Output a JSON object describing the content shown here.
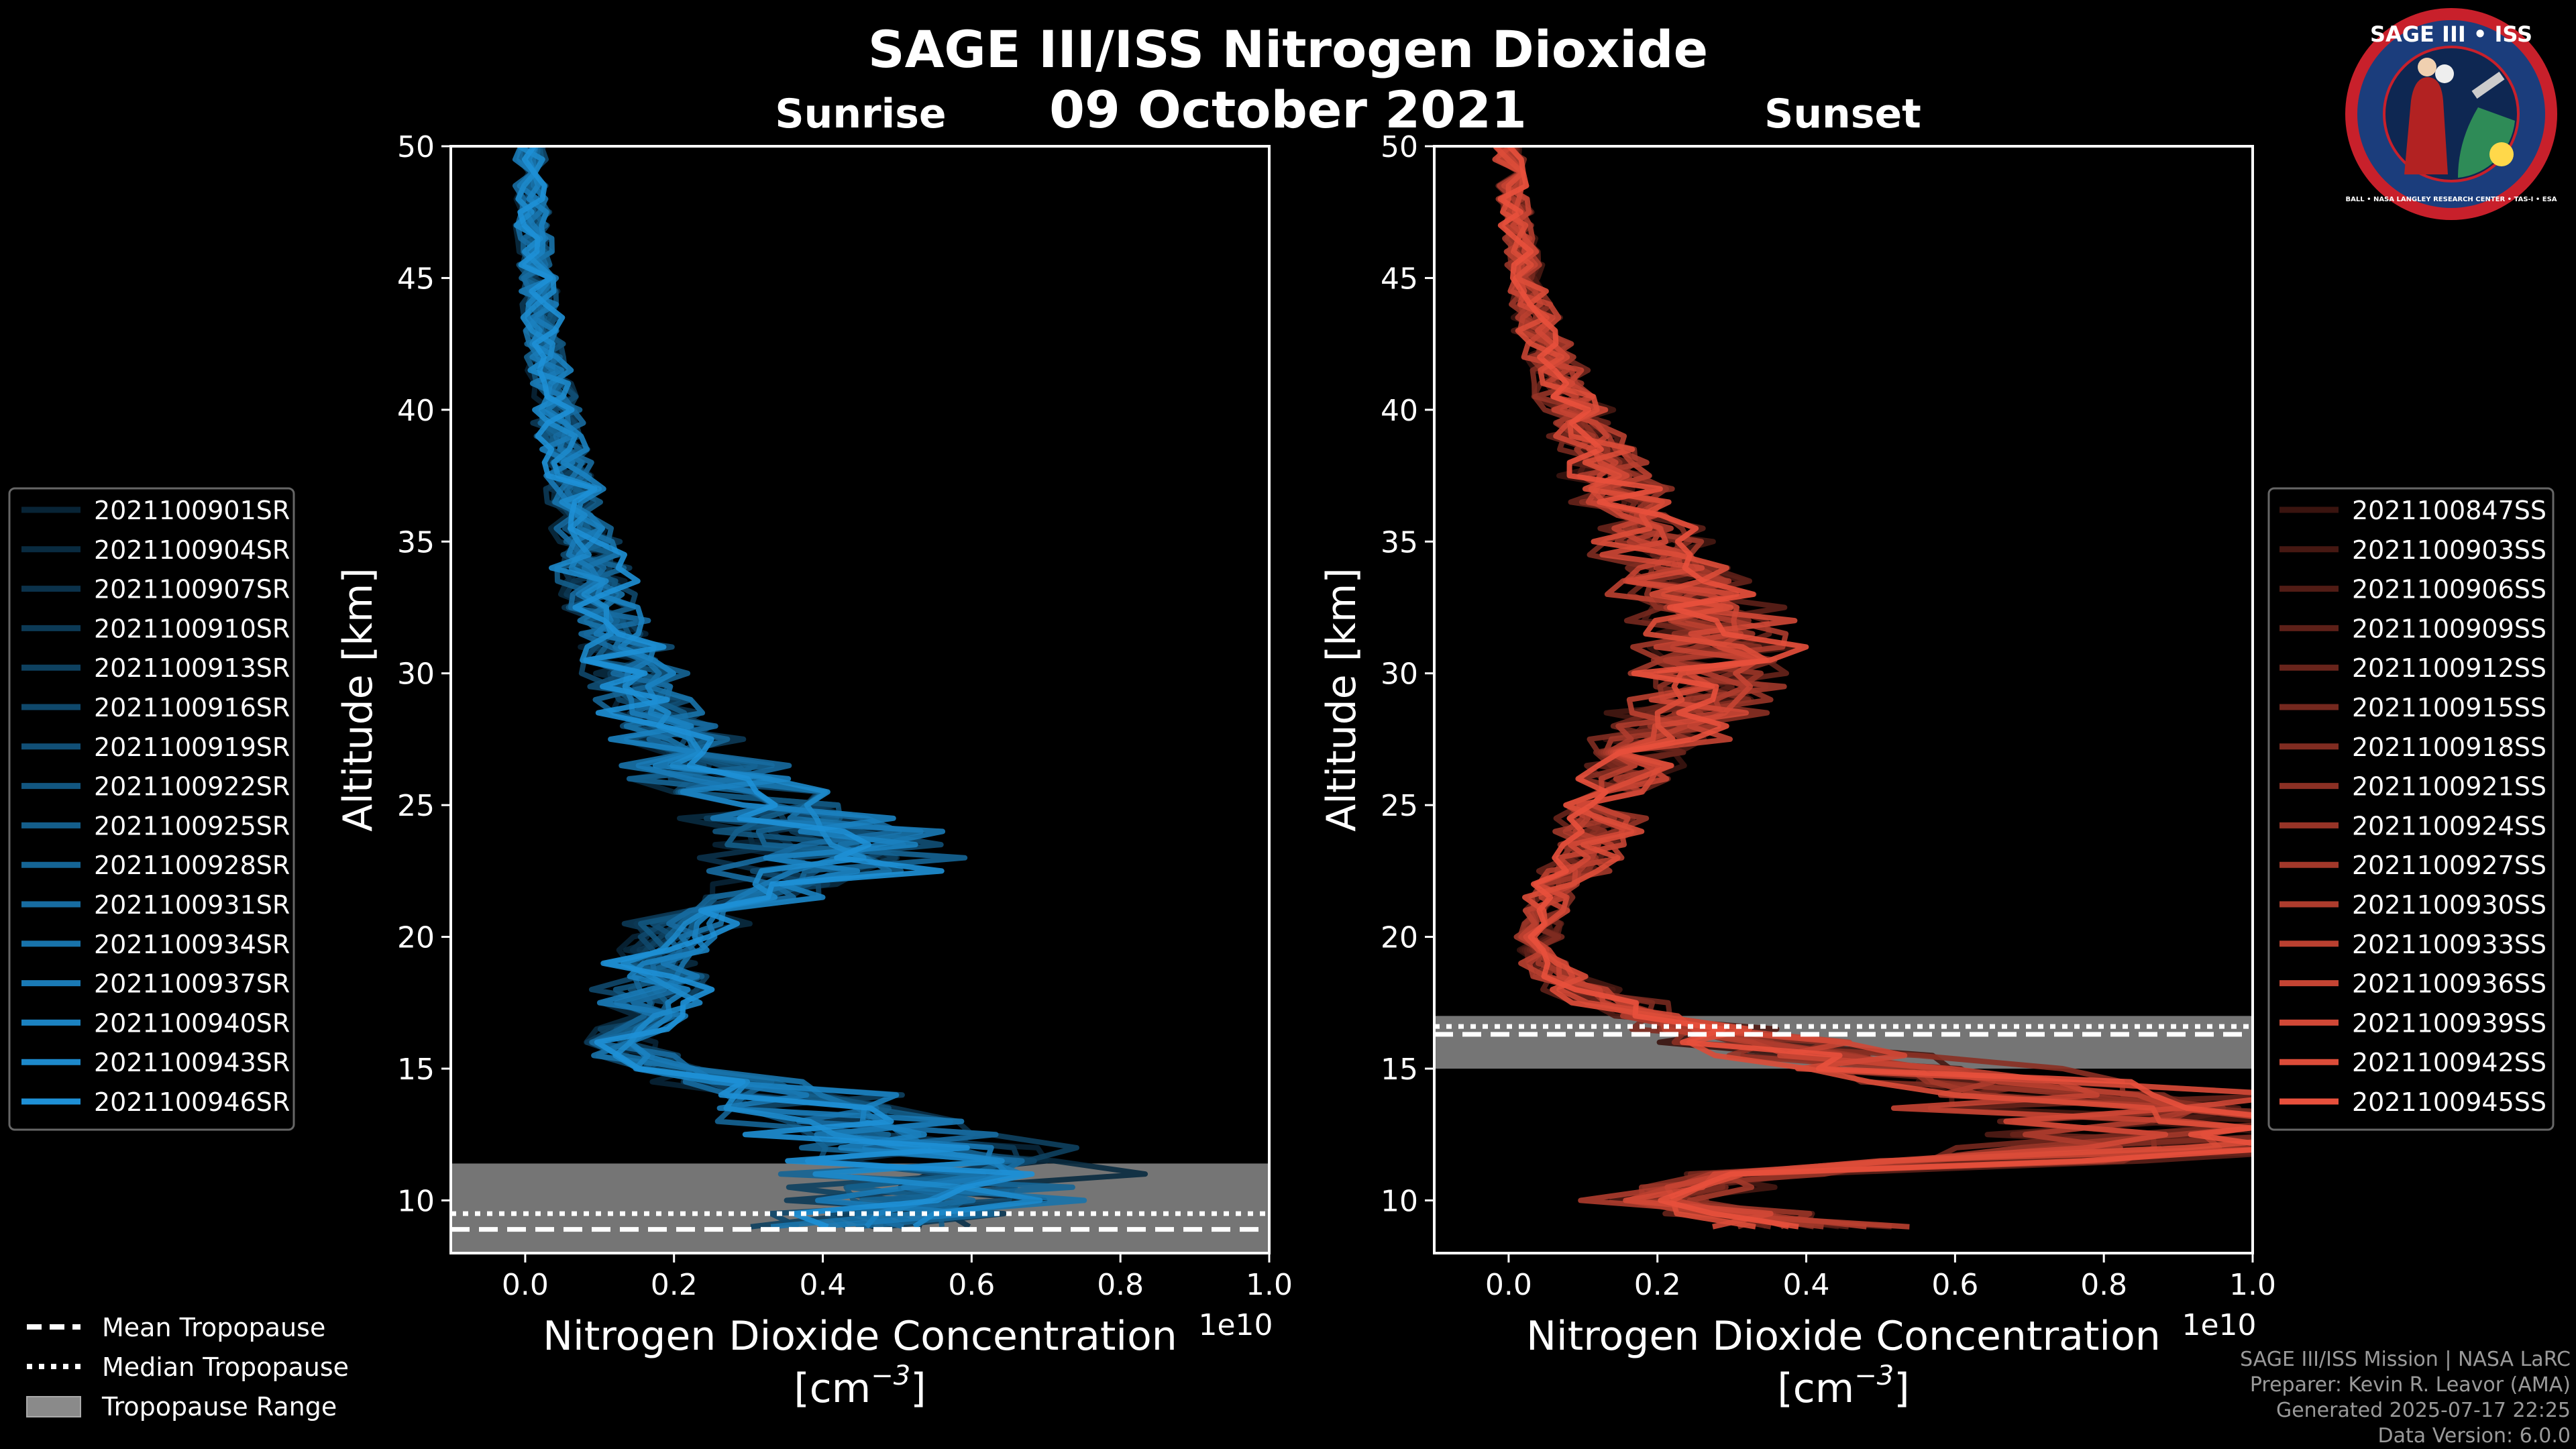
{
  "figure": {
    "title": "SAGE III/ISS Nitrogen Dioxide",
    "date": "09 October 2021",
    "logo": {
      "top_text": "SAGE III • ISS",
      "ring_text": "BALL • NASA LANGLEY RESEARCH CENTER • TAS-I • ESA"
    },
    "footer": [
      "SAGE III/ISS Mission | NASA LaRC",
      "Preparer: Kevin R. Leavor (AMA)",
      "Generated 2025-07-17 22:25",
      "Data Version: 6.0.0"
    ],
    "tropopause_legend": [
      {
        "label": "Mean Tropopause",
        "style": "dashed"
      },
      {
        "label": "Median Tropopause",
        "style": "dotted"
      },
      {
        "label": "Tropopause Range",
        "style": "patch"
      }
    ]
  },
  "chart_data": [
    {
      "type": "line",
      "title": "Sunrise",
      "xlabel": "Nitrogen Dioxide Concentration",
      "xlabel_units": "[cm",
      "xlabel_units_exp": "−3",
      "xlabel_units_close": "]",
      "ylabel": "Altitude [km]",
      "offset_label": "1e10",
      "xlim": [
        -0.1,
        1.0
      ],
      "ylim": [
        8,
        50
      ],
      "xticks": [
        "0.0",
        "0.2",
        "0.4",
        "0.6",
        "0.8",
        "1.0"
      ],
      "xtick_values": [
        0.0,
        0.2,
        0.4,
        0.6,
        0.8,
        1.0
      ],
      "yticks": [
        "10",
        "15",
        "20",
        "25",
        "30",
        "35",
        "40",
        "45",
        "50"
      ],
      "ytick_values": [
        10,
        15,
        20,
        25,
        30,
        35,
        40,
        45,
        50
      ],
      "base_color": "#1e90d6",
      "tropopause": {
        "mean": 8.9,
        "median": 9.5,
        "range": [
          8.0,
          11.4
        ]
      },
      "profile": {
        "altitudes": [
          50,
          47,
          44,
          41,
          38,
          35,
          32,
          29,
          27,
          25,
          24,
          23,
          22,
          21,
          20,
          19,
          18,
          17,
          16,
          15,
          14,
          13,
          12,
          11,
          10,
          9
        ],
        "values": [
          0.005,
          0.01,
          0.02,
          0.035,
          0.055,
          0.08,
          0.11,
          0.16,
          0.22,
          0.32,
          0.4,
          0.42,
          0.36,
          0.25,
          0.18,
          0.17,
          0.18,
          0.15,
          0.12,
          0.2,
          0.35,
          0.45,
          0.55,
          0.6,
          0.55,
          0.45
        ]
      },
      "series": [
        {
          "name": "2021100901SR"
        },
        {
          "name": "2021100904SR"
        },
        {
          "name": "2021100907SR"
        },
        {
          "name": "2021100910SR"
        },
        {
          "name": "2021100913SR"
        },
        {
          "name": "2021100916SR"
        },
        {
          "name": "2021100919SR"
        },
        {
          "name": "2021100922SR"
        },
        {
          "name": "2021100925SR"
        },
        {
          "name": "2021100928SR"
        },
        {
          "name": "2021100931SR"
        },
        {
          "name": "2021100934SR"
        },
        {
          "name": "2021100937SR"
        },
        {
          "name": "2021100940SR"
        },
        {
          "name": "2021100943SR"
        },
        {
          "name": "2021100946SR"
        }
      ]
    },
    {
      "type": "line",
      "title": "Sunset",
      "xlabel": "Nitrogen Dioxide Concentration",
      "xlabel_units": "[cm",
      "xlabel_units_exp": "−3",
      "xlabel_units_close": "]",
      "ylabel": "Altitude [km]",
      "offset_label": "1e10",
      "xlim": [
        -0.1,
        1.0
      ],
      "ylim": [
        8,
        50
      ],
      "xticks": [
        "0.0",
        "0.2",
        "0.4",
        "0.6",
        "0.8",
        "1.0"
      ],
      "xtick_values": [
        0.0,
        0.2,
        0.4,
        0.6,
        0.8,
        1.0
      ],
      "yticks": [
        "10",
        "15",
        "20",
        "25",
        "30",
        "35",
        "40",
        "45",
        "50"
      ],
      "ytick_values": [
        10,
        15,
        20,
        25,
        30,
        35,
        40,
        45,
        50
      ],
      "base_color": "#e8503c",
      "tropopause": {
        "mean": 16.3,
        "median": 16.6,
        "range": [
          15.0,
          17.0
        ]
      },
      "profile": {
        "altitudes": [
          50,
          47,
          44,
          41,
          38,
          35,
          32,
          31,
          30,
          29,
          28,
          27,
          26,
          25,
          24,
          23,
          22,
          21,
          20,
          19,
          18,
          17,
          16,
          15,
          14,
          13,
          12,
          11,
          10,
          9
        ],
        "values": [
          0.0,
          0.01,
          0.03,
          0.07,
          0.13,
          0.2,
          0.27,
          0.29,
          0.28,
          0.26,
          0.22,
          0.18,
          0.15,
          0.13,
          0.12,
          0.1,
          0.07,
          0.05,
          0.04,
          0.05,
          0.1,
          0.2,
          0.35,
          0.55,
          0.8,
          0.9,
          0.9,
          0.3,
          0.2,
          0.4
        ]
      },
      "series": [
        {
          "name": "2021100847SS"
        },
        {
          "name": "2021100903SS"
        },
        {
          "name": "2021100906SS"
        },
        {
          "name": "2021100909SS"
        },
        {
          "name": "2021100912SS"
        },
        {
          "name": "2021100915SS"
        },
        {
          "name": "2021100918SS"
        },
        {
          "name": "2021100921SS"
        },
        {
          "name": "2021100924SS"
        },
        {
          "name": "2021100927SS"
        },
        {
          "name": "2021100930SS"
        },
        {
          "name": "2021100933SS"
        },
        {
          "name": "2021100936SS"
        },
        {
          "name": "2021100939SS"
        },
        {
          "name": "2021100942SS"
        },
        {
          "name": "2021100945SS"
        }
      ]
    }
  ]
}
